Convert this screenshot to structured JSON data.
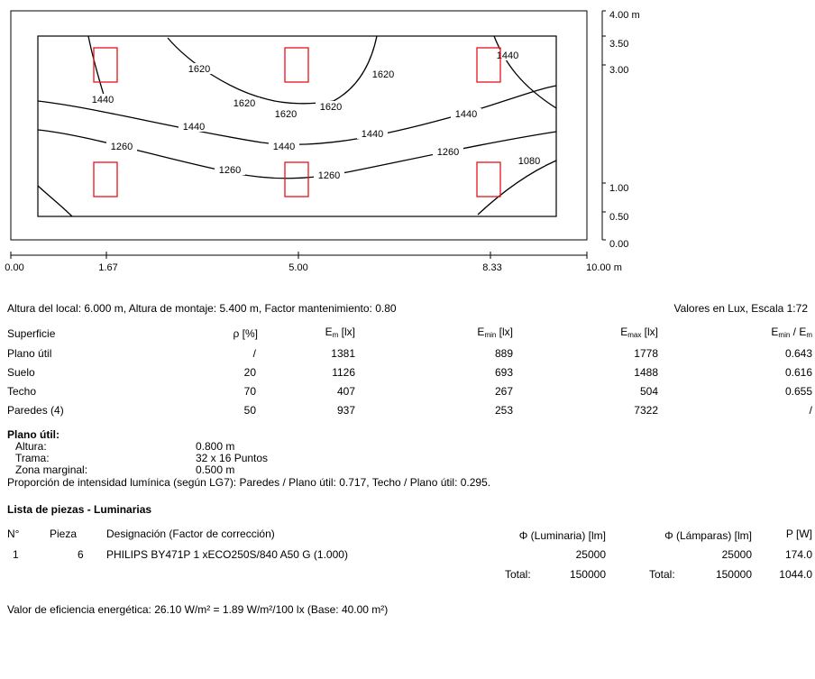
{
  "plan": {
    "yaxis": [
      "4.00 m",
      "3.50",
      "3.00",
      "1.00",
      "0.50",
      "0.00"
    ],
    "xaxis": [
      "0.00",
      "1.67",
      "5.00",
      "8.33",
      "10.00 m"
    ],
    "contours": [
      "1620",
      "1620",
      "1440",
      "1620",
      "1620",
      "1620",
      "1440",
      "1440",
      "1440",
      "1440",
      "1440",
      "1260",
      "1260",
      "1260",
      "1260",
      "1080"
    ]
  },
  "info": {
    "line": "Altura del local: 6.000 m, Altura de montaje: 5.400 m, Factor mantenimiento: 0.80",
    "scale": "Valores en Lux, Escala 1:72"
  },
  "surfaces": {
    "headers": {
      "superficie": "Superficie",
      "rho": "ρ [%]",
      "em_main": "E",
      "em_sub": "m",
      "em_unit": " [lx]",
      "emin_main": "E",
      "emin_sub": "min",
      "emin_unit": " [lx]",
      "emax_main": "E",
      "emax_sub": "max",
      "emax_unit": " [lx]",
      "ratio_a": "E",
      "ratio_a_sub": "min",
      "ratio_mid": " / E",
      "ratio_b_sub": "m"
    },
    "rows": [
      {
        "name": "Plano útil",
        "rho": "/",
        "em": "1381",
        "emin": "889",
        "emax": "1778",
        "ratio": "0.643"
      },
      {
        "name": "Suelo",
        "rho": "20",
        "em": "1126",
        "emin": "693",
        "emax": "1488",
        "ratio": "0.616"
      },
      {
        "name": "Techo",
        "rho": "70",
        "em": "407",
        "emin": "267",
        "emax": "504",
        "ratio": "0.655"
      },
      {
        "name": "Paredes (4)",
        "rho": "50",
        "em": "937",
        "emin": "253",
        "emax": "7322",
        "ratio": "/"
      }
    ]
  },
  "plano_util": {
    "title": "Plano útil:",
    "altura_label": "Altura:",
    "altura": "0.800 m",
    "trama_label": "Trama:",
    "trama": "32 x 16 Puntos",
    "zona_label": "Zona marginal:",
    "zona": "0.500 m",
    "proporcion": "Proporción de intensidad lumínica (según LG7): Paredes / Plano útil: 0.717, Techo / Plano útil: 0.295."
  },
  "luminarias": {
    "title": "Lista de piezas - Luminarias",
    "headers": {
      "n": "N°",
      "pieza": "Pieza",
      "designacion": "Designación (Factor de corrección)",
      "flux_lum": "Φ (Luminaria) [lm]",
      "flux_lamp": "Φ (Lámparas) [lm]",
      "p": "P [W]"
    },
    "rows": [
      {
        "n": "1",
        "pieza": "6",
        "designacion": "PHILIPS BY471P 1 xECO250S/840 A50 G (1.000)",
        "flux_lum": "25000",
        "flux_lamp": "25000",
        "p": "174.0"
      }
    ],
    "total_label1": "Total:",
    "total_lum": "150000",
    "total_label2": "Total:",
    "total_lamp": "150000",
    "total_p": "1044.0"
  },
  "eficiencia": "Valor de eficiencia energética: 26.10 W/m² = 1.89 W/m²/100 lx (Base: 40.00 m²)"
}
